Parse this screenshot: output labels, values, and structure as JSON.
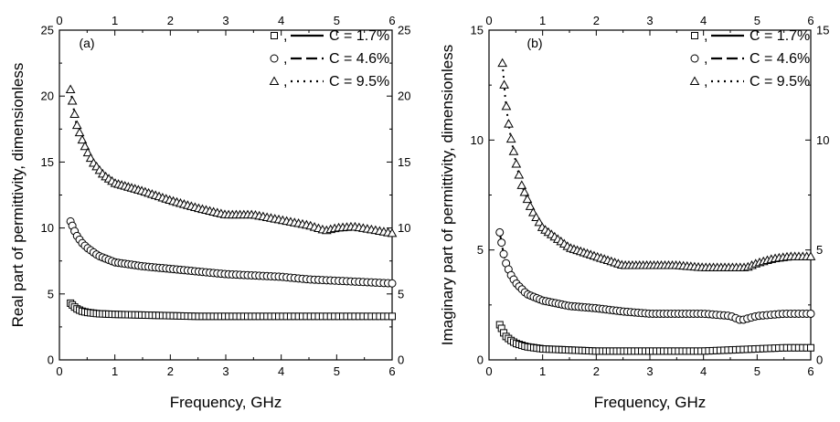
{
  "chart_data": [
    {
      "type": "line",
      "panel_label": "(a)",
      "xlabel": "Frequency, GHz",
      "ylabel": "Real part of permittivity, dimensionless",
      "xlim": [
        0,
        6
      ],
      "ylim": [
        0,
        25
      ],
      "xticks": [
        "0",
        "1",
        "2",
        "3",
        "4",
        "5",
        "6"
      ],
      "yticks": [
        "0",
        "5",
        "10",
        "15",
        "20",
        "25"
      ],
      "top_axis_ticks": [
        "0",
        "1",
        "2",
        "3",
        "4",
        "5",
        "6"
      ],
      "right_axis_ticks": [
        "0",
        "5",
        "10",
        "15",
        "20",
        "25"
      ],
      "legend_position": "top-right",
      "legend": [
        "C = 1.7%",
        "C = 4.6%",
        "C = 9.5%"
      ],
      "legend_separator": ",",
      "series": [
        {
          "name": "C = 1.7%",
          "marker": "square",
          "line_style": "solid",
          "x": [
            0.2,
            0.3,
            0.4,
            0.5,
            0.7,
            1.0,
            1.5,
            2.0,
            2.5,
            3.0,
            3.5,
            4.0,
            4.5,
            5.0,
            5.5,
            6.0
          ],
          "values": [
            4.3,
            3.9,
            3.7,
            3.6,
            3.5,
            3.45,
            3.4,
            3.35,
            3.3,
            3.3,
            3.3,
            3.3,
            3.3,
            3.3,
            3.3,
            3.3
          ]
        },
        {
          "name": "C = 4.6%",
          "marker": "circle",
          "line_style": "dashed",
          "x": [
            0.2,
            0.3,
            0.4,
            0.5,
            0.7,
            1.0,
            1.5,
            2.0,
            2.5,
            3.0,
            3.5,
            4.0,
            4.5,
            5.0,
            5.5,
            6.0
          ],
          "values": [
            10.5,
            9.5,
            8.9,
            8.5,
            7.9,
            7.4,
            7.1,
            6.9,
            6.7,
            6.5,
            6.4,
            6.3,
            6.1,
            6.0,
            5.9,
            5.8
          ]
        },
        {
          "name": "C = 9.5%",
          "marker": "triangle",
          "line_style": "dotted",
          "x": [
            0.2,
            0.25,
            0.3,
            0.4,
            0.5,
            0.6,
            0.8,
            1.0,
            1.5,
            2.0,
            2.5,
            3.0,
            3.5,
            4.0,
            4.5,
            4.8,
            5.0,
            5.3,
            5.6,
            6.0
          ],
          "values": [
            20.5,
            19.2,
            18.0,
            16.8,
            15.8,
            15.0,
            14.0,
            13.4,
            12.8,
            12.1,
            11.5,
            11.0,
            11.0,
            10.6,
            10.2,
            9.8,
            10.0,
            10.1,
            9.9,
            9.6
          ]
        }
      ]
    },
    {
      "type": "line",
      "panel_label": "(b)",
      "xlabel": "Frequency, GHz",
      "ylabel": "Imaginary part of permittivity, dimensionless",
      "xlim": [
        0,
        6
      ],
      "ylim": [
        0,
        15
      ],
      "xticks": [
        "0",
        "1",
        "2",
        "3",
        "4",
        "5",
        "6"
      ],
      "yticks": [
        "0",
        "5",
        "10",
        "15"
      ],
      "top_axis_ticks": [
        "0",
        "1",
        "2",
        "3",
        "4",
        "5",
        "6"
      ],
      "right_axis_ticks": [
        "0",
        "5",
        "10",
        "15"
      ],
      "legend_position": "top-right",
      "legend": [
        "C = 1.7%",
        "C = 4.6%",
        "C = 9.5%"
      ],
      "legend_separator": ",",
      "series": [
        {
          "name": "C = 1.7%",
          "marker": "square",
          "line_style": "solid",
          "x": [
            0.2,
            0.3,
            0.4,
            0.5,
            0.7,
            1.0,
            1.5,
            2.0,
            2.5,
            3.0,
            3.5,
            4.0,
            4.5,
            5.0,
            5.5,
            6.0
          ],
          "values": [
            1.6,
            1.1,
            0.9,
            0.75,
            0.6,
            0.5,
            0.45,
            0.4,
            0.4,
            0.4,
            0.4,
            0.4,
            0.45,
            0.5,
            0.55,
            0.55
          ]
        },
        {
          "name": "C = 4.6%",
          "marker": "circle",
          "line_style": "dashed",
          "x": [
            0.2,
            0.25,
            0.3,
            0.4,
            0.5,
            0.7,
            1.0,
            1.5,
            2.0,
            2.5,
            3.0,
            3.5,
            4.0,
            4.5,
            4.7,
            5.0,
            5.5,
            6.0
          ],
          "values": [
            5.8,
            5.1,
            4.5,
            3.9,
            3.5,
            3.0,
            2.7,
            2.45,
            2.35,
            2.2,
            2.1,
            2.1,
            2.1,
            2.0,
            1.8,
            2.0,
            2.1,
            2.1
          ]
        },
        {
          "name": "C = 9.5%",
          "marker": "triangle",
          "line_style": "dotted",
          "x": [
            0.25,
            0.3,
            0.35,
            0.4,
            0.5,
            0.6,
            0.8,
            1.0,
            1.5,
            2.0,
            2.5,
            3.0,
            3.5,
            4.0,
            4.5,
            4.8,
            5.0,
            5.3,
            5.6,
            6.0
          ],
          "values": [
            13.5,
            12.0,
            11.0,
            10.2,
            9.0,
            8.0,
            6.8,
            6.0,
            5.1,
            4.7,
            4.3,
            4.3,
            4.3,
            4.2,
            4.2,
            4.2,
            4.4,
            4.6,
            4.7,
            4.7
          ]
        }
      ]
    }
  ]
}
